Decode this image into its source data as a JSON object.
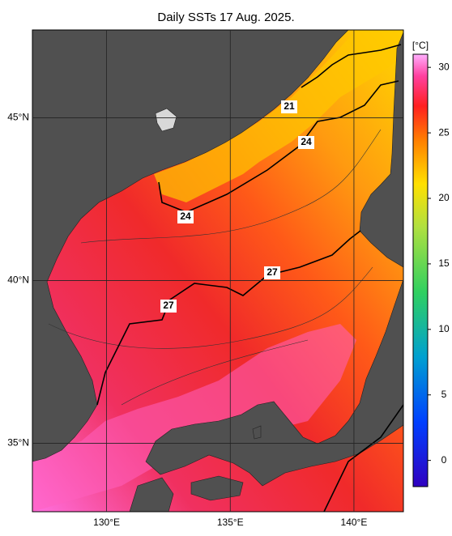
{
  "title": "Daily SSTs 17 Aug. 2025.",
  "map": {
    "xlim": [
      127,
      142
    ],
    "ylim": [
      32.9,
      47.7
    ],
    "xticks": [
      {
        "value": 130,
        "label": "130°E"
      },
      {
        "value": 135,
        "label": "135°E"
      },
      {
        "value": 140,
        "label": "140°E"
      }
    ],
    "yticks": [
      {
        "value": 35,
        "label": "35°N"
      },
      {
        "value": 40,
        "label": "40°N"
      },
      {
        "value": 45,
        "label": "45°N"
      }
    ]
  },
  "colorbar": {
    "label": "[°C]",
    "lim": [
      -2,
      31
    ],
    "ticks": [
      0,
      5,
      10,
      15,
      20,
      25,
      30
    ]
  },
  "contour_labels": [
    21,
    24,
    24,
    27,
    27
  ]
}
